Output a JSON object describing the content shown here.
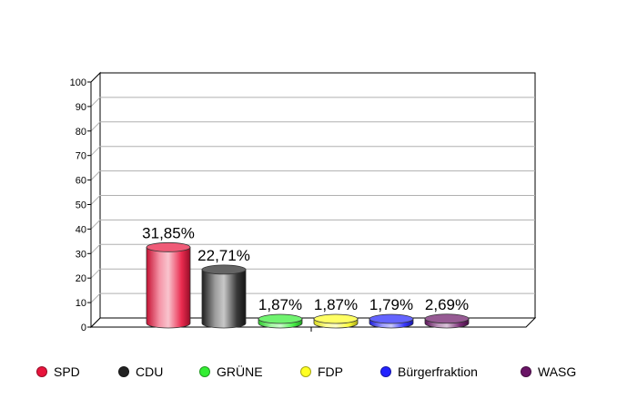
{
  "chart_data": {
    "type": "bar",
    "style": "3d-cylinder",
    "categories": [
      "SPD",
      "CDU",
      "GRÜNE",
      "FDP",
      "Bürgerfraktion",
      "WASG"
    ],
    "values": [
      31.85,
      22.71,
      1.87,
      1.87,
      1.79,
      2.69
    ],
    "data_labels": [
      "31,85%",
      "22,71%",
      "1,87%",
      "1,87%",
      "1,79%",
      "2,69%"
    ],
    "colors": [
      "#e8143c",
      "#222222",
      "#33ee33",
      "#ffff22",
      "#2222ff",
      "#6a1466"
    ],
    "ylim": [
      0,
      100
    ],
    "yticks": [
      0,
      10,
      20,
      30,
      40,
      50,
      60,
      70,
      80,
      90,
      100
    ],
    "grid": true,
    "legend": "bottom",
    "title": "",
    "xlabel": "",
    "ylabel": ""
  }
}
